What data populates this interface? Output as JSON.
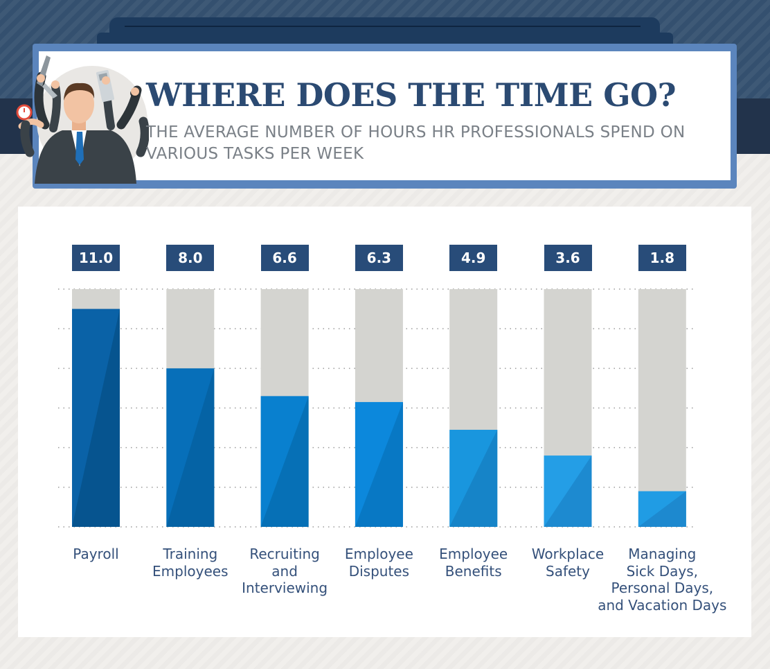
{
  "header": {
    "title": "WHERE DOES THE TIME GO?",
    "subtitle": "THE AVERAGE NUMBER OF HOURS HR PROFESSIONALS SPEND ON VARIOUS TASKS PER WEEK"
  },
  "illustration": {
    "icon": "multitasking-businessman-icon"
  },
  "colors": {
    "title": "#2b4a72",
    "badge": "#284c79",
    "track": "#d4d4d0",
    "bars": [
      "#0a62a7",
      "#076fb9",
      "#0980cf",
      "#0c88dc",
      "#1996de",
      "#249ee6",
      "#209ce4"
    ],
    "bars_shade": [
      "#06548f",
      "#0563a5",
      "#0670b6",
      "#0878c4",
      "#1684c8",
      "#1d8ad0",
      "#1d89cf"
    ]
  },
  "chart_data": {
    "type": "bar",
    "title": "WHERE DOES THE TIME GO?",
    "subtitle": "THE AVERAGE NUMBER OF HOURS HR PROFESSIONALS SPEND ON VARIOUS TASKS PER WEEK",
    "categories": [
      "Payroll",
      "Training\nEmployees",
      "Recruiting\nand\nInterviewing",
      "Employee\nDisputes",
      "Employee\nBenefits",
      "Workplace\nSafety",
      "Managing\nSick Days,\nPersonal Days,\nand Vacation Days"
    ],
    "values": [
      11.0,
      8.0,
      6.6,
      6.3,
      4.9,
      3.6,
      1.8
    ],
    "value_labels": [
      "11.0",
      "8.0",
      "6.6",
      "6.3",
      "4.9",
      "3.6",
      "1.8"
    ],
    "xlabel": "",
    "ylabel": "",
    "ylim": [
      0,
      12
    ],
    "grid": true,
    "legend": "none"
  }
}
